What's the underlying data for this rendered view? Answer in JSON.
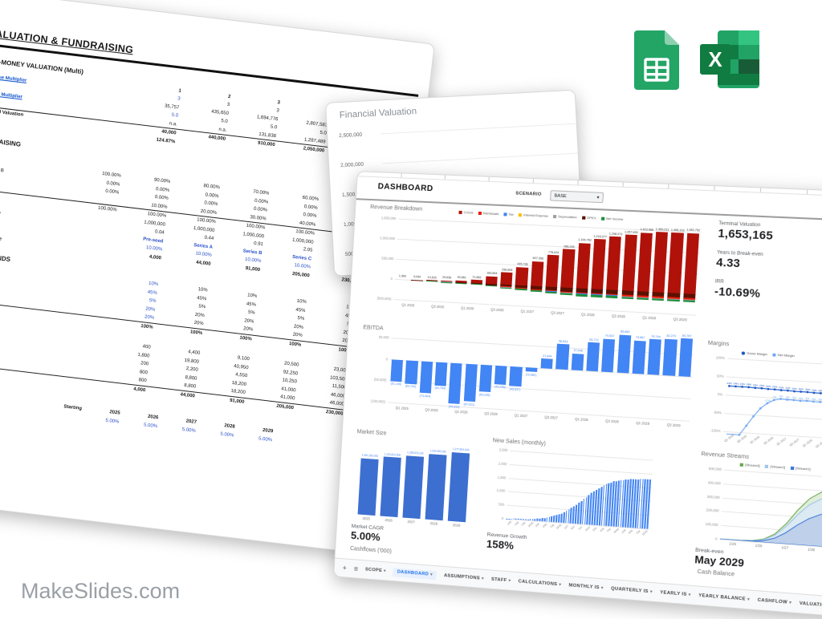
{
  "branding": {
    "watermark": "MakeSlides.com"
  },
  "left_sheet": {
    "gutter": {
      "start": 2,
      "end": 32
    },
    "title": "VALUATION & FUNDRAISING",
    "premoney": {
      "title": "PRE-MONEY VALUATION (Multi)",
      "cols": [
        "1",
        "2",
        "3",
        "4",
        "5"
      ],
      "rows": [
        {
          "label": "Revenue Multiplier",
          "mult": [
            "3",
            "3",
            "3",
            "3",
            "3"
          ],
          "vals": [
            "35,757",
            "435,650",
            "1,694,776",
            "2,807,583",
            "3,004,552"
          ]
        },
        {
          "label": "EBITDA Multiplier",
          "mult": [
            "5.0",
            "5.0",
            "5.0",
            "5.0",
            "5.0"
          ],
          "vals": [
            "n.a.",
            "n.a.",
            "131,838",
            "1,287,489",
            "1,604,488"
          ]
        }
      ],
      "financial_valuation": {
        "label": "Financial Valuation",
        "vals": [
          "40,000",
          "440,000",
          "910,000",
          "2,050,000",
          "2,300,000"
        ]
      },
      "rri": {
        "label": "RRI",
        "value": "124.87%"
      }
    },
    "fundraising": {
      "title": "FUNDRAISING",
      "cap_table_label": "Cap Table",
      "cap_rows": [
        {
          "label": "Founder",
          "vals": [
            "100.00%",
            "90.00%",
            "80.00%",
            "70.00%",
            "60.00%",
            "50.00%"
          ]
        },
        {
          "label": "Shareholder B",
          "vals": [
            "0.00%",
            "0.00%",
            "0.00%",
            "0.00%",
            "0.00%",
            "0.00%"
          ]
        },
        {
          "label": "Employees",
          "vals": [
            "0.00%",
            "0.00%",
            "0.00%",
            "0.00%",
            "0.00%",
            "0.00%"
          ]
        },
        {
          "label": "Shares sold",
          "vals": [
            "",
            "10.00%",
            "20.00%",
            "30.00%",
            "40.00%",
            "50.00%"
          ]
        },
        {
          "label": "Total",
          "vals": [
            "100.00%",
            "100.00%",
            "100.00%",
            "100.00%",
            "100.00%",
            "100.00%"
          ],
          "bt": true
        }
      ],
      "share_rows": [
        {
          "label": "Shares",
          "vals": [
            "",
            "1,000,000",
            "1,000,000",
            "1,000,000",
            "1,000,000",
            "1,000,000"
          ]
        },
        {
          "label": "Price per share",
          "vals": [
            "",
            "0.04",
            "0.44",
            "0.91",
            "2.05",
            "2.3"
          ]
        }
      ],
      "round_rows": [
        {
          "label": "Seed round",
          "vals": [
            "",
            "Pre-seed",
            "Series A",
            "Series B",
            "Series C",
            "IPO"
          ],
          "blue": true,
          "bold": true
        },
        {
          "label": "Shares to sell",
          "vals": [
            "",
            "10.00%",
            "10.00%",
            "10.00%",
            "10.00%",
            "10.00%"
          ],
          "blue": true
        },
        {
          "label": "Amount to raise",
          "vals": [
            "",
            "4,000",
            "44,000",
            "91,000",
            "205,000",
            "230,000"
          ],
          "bold": true
        }
      ]
    },
    "use_of_funds": {
      "title": "USE OF FUNDS",
      "pct_rows": [
        {
          "label": "Cashflow",
          "vals": [
            "10%",
            "10%",
            "10%",
            "10%",
            "10%"
          ],
          "blue1": true
        },
        {
          "label": "Marketing",
          "vals": [
            "45%",
            "45%",
            "45%",
            "45%",
            "45%"
          ],
          "blue1": true
        },
        {
          "label": "Legal",
          "vals": [
            "5%",
            "5%",
            "5%",
            "5%",
            "5%"
          ],
          "blue1": true
        },
        {
          "label": "Employees",
          "vals": [
            "20%",
            "20%",
            "20%",
            "20%",
            "20%"
          ],
          "blue1": true
        },
        {
          "label": "Supplier Credit",
          "vals": [
            "20%",
            "20%",
            "20%",
            "20%",
            "20%"
          ],
          "blue1": true,
          "ul": true
        },
        {
          "label": "Total",
          "vals": [
            "100%",
            "100%",
            "100%",
            "100%",
            "100%"
          ],
          "bold": true,
          "bt": true
        }
      ],
      "injections_title": "Capital Injections",
      "inj_rows": [
        {
          "label": "Cashflow",
          "vals": [
            "400",
            "4,400",
            "9,100",
            "20,500",
            "23,000"
          ]
        },
        {
          "label": "Marketing",
          "vals": [
            "1,800",
            "19,800",
            "40,950",
            "92,250",
            "103,500"
          ]
        },
        {
          "label": "Legal",
          "vals": [
            "200",
            "2,200",
            "4,550",
            "10,250",
            "11,500"
          ]
        },
        {
          "label": "Employees",
          "vals": [
            "800",
            "8,800",
            "18,200",
            "41,000",
            "46,000"
          ]
        },
        {
          "label": "Supplier Credit",
          "vals": [
            "800",
            "8,800",
            "18,200",
            "41,000",
            "46,000"
          ],
          "ul": true
        },
        {
          "label": "Total",
          "vals": [
            "4,000",
            "44,000",
            "91,000",
            "205,000",
            "230,000"
          ],
          "bold": true,
          "bt": true
        }
      ]
    },
    "wacc": {
      "title": "WACC",
      "starting_label": "Starting",
      "years": [
        "2025",
        "2026",
        "2027",
        "2028",
        "2029"
      ],
      "rate_row": {
        "label": "Risk-free Rate",
        "vals": [
          "5.00%",
          "5.00%",
          "5.00%",
          "5.00%",
          "5.00%"
        ]
      }
    }
  },
  "mid_sheet": {
    "title": "Financial Valuation",
    "y_labels": [
      "2,500,000",
      "2,000,000",
      "1,500,000",
      "1,000,000",
      "500,000"
    ]
  },
  "dashboard": {
    "title": "DASHBOARD",
    "scenario_label": "SCENARIO",
    "scenario_value": "BASE",
    "dropdown_caret": "▾",
    "stats": [
      {
        "label": "Terminal Valuation",
        "value": "1,653,165"
      },
      {
        "label": "Years to Break-even",
        "value": "4.33"
      },
      {
        "label": "IRR",
        "value": "-10.69%"
      }
    ],
    "kpis": {
      "market_cagr": {
        "label": "Market CAGR",
        "value": "5.00%"
      },
      "revenue_growth": {
        "label": "Revenue Growth",
        "value": "158%"
      },
      "break_even": {
        "label": "Break-even",
        "value": "May 2029"
      }
    },
    "extra_titles": {
      "cashflows": "Cashflows ('000)",
      "cash_balance": "Cash Balance"
    },
    "charts": {
      "revenue_breakdown": {
        "type": "bar-stacked",
        "title": "Revenue Breakdown",
        "legend": [
          {
            "name": "COGS",
            "color": "#b0120a"
          },
          {
            "name": "Dismissals",
            "color": "#ea1c0c"
          },
          {
            "name": "Tax",
            "color": "#4285f4"
          },
          {
            "name": "Interest Expense",
            "color": "#fbbc04"
          },
          {
            "name": "Depreciation",
            "color": "#9aa0a6"
          },
          {
            "name": "OPEX",
            "color": "#5c1000"
          },
          {
            "name": "Net Income",
            "color": "#1e8e3e"
          }
        ],
        "y_ticks": [
          "1,500,000",
          "1,000,000",
          "500,000",
          "0",
          "(500,000)"
        ],
        "x_ticks": [
          "Q1 2025",
          "Q3 2025",
          "Q1 2026",
          "Q3 2026",
          "Q1 2027",
          "Q3 2027",
          "Q1 2028",
          "Q3 2028",
          "Q1 2029",
          "Q3 2029"
        ],
        "totals": [
          "1,369",
          "5,949",
          "13,525",
          "29,636",
          "40,561",
          "71,583",
          "189,894",
          "296,605",
          "445,736",
          "607,356",
          "778,029",
          "936,249",
          "1,105,752",
          "1,216,077",
          "1,298,373",
          "1,357,630",
          "1,423,966",
          "1,450,011",
          "1,456,102",
          "1,462,752"
        ],
        "costs": [
          1800,
          3500,
          7000,
          14000,
          22000,
          38000,
          65000,
          95000,
          120000,
          148000,
          168000,
          182000,
          192000,
          198000,
          202000,
          205000,
          207000,
          208000,
          209000,
          210000
        ]
      },
      "ebitda": {
        "type": "bar",
        "title": "EBITDA",
        "color": "#4285f4",
        "y_ticks": [
          "50,000",
          "0",
          "(50,000)",
          "(100,000)"
        ],
        "x_ticks": [
          "Q1 2025",
          "Q3 2025",
          "Q1 2026",
          "Q3 2026",
          "Q1 2027",
          "Q3 2027",
          "Q1 2028",
          "Q3 2028",
          "Q1 2029",
          "Q3 2029"
        ],
        "values": [
          "(51,145)",
          "(54,704)",
          "(74,494)",
          "(54,754)",
          "(94,533)",
          "(87,021)",
          "(63,295)",
          "(43,295)",
          "(45,647)",
          "(10,582)",
          "21,844",
          "56,833",
          "37,046",
          "64,713",
          "74,922",
          "85,882",
          "74,887",
          "79,744",
          "82,270",
          "84,787"
        ]
      },
      "margins": {
        "type": "line",
        "title": "Margins",
        "legend": [
          {
            "name": "Gross Margin",
            "color": "#1a56c4"
          },
          {
            "name": "Net Margin",
            "color": "#6fa8f5"
          }
        ],
        "y_ticks": [
          "100%",
          "50%",
          "0%",
          "-50%",
          "-100%"
        ],
        "x_ticks": [
          "Q1 2025",
          "Q3 2025",
          "Q1 2026",
          "Q3 2026",
          "Q1 2027",
          "Q3 2027",
          "Q1 2028",
          "Q3 2028",
          "Q1 2029",
          "Q3 2029"
        ],
        "gross": [
          24,
          24,
          24,
          24,
          23,
          23,
          22,
          22,
          21,
          21,
          20,
          20,
          20,
          19,
          19,
          19,
          18,
          18,
          17,
          17
        ],
        "net": [
          -160,
          -132,
          -108,
          -82,
          -55,
          -32,
          -17,
          -7,
          -3,
          -4,
          -4,
          -5,
          -4,
          -5,
          -5,
          -5,
          -4,
          -5,
          -5,
          -5
        ]
      },
      "market_size": {
        "type": "bar",
        "title": "Market Size",
        "color": "#3d6fd1",
        "categories": [
          "2025",
          "2026",
          "2027",
          "2028",
          "2029"
        ],
        "labels": [
          "1,051,250,000",
          "1,103,812,500",
          "1,159,003,125",
          "1,216,953,281",
          "1,277,801,000"
        ]
      },
      "new_sales": {
        "type": "bar",
        "title": "New Sales (monthly)",
        "color": "#4285f4",
        "y_ticks": [
          "2,500",
          "2,000",
          "1,500",
          "1,000",
          "500",
          "0"
        ],
        "x_ticks": [
          "1/25",
          "4/25",
          "7/25",
          "10/25",
          "1/26",
          "4/26",
          "7/26",
          "10/26",
          "1/27",
          "4/27",
          "7/27",
          "10/27",
          "1/28",
          "4/28",
          "7/28",
          "10/28",
          "1/29",
          "4/29",
          "7/29",
          "10/29"
        ],
        "values": [
          9,
          11,
          13,
          15,
          18,
          21,
          25,
          30,
          35,
          41,
          49,
          57,
          67,
          79,
          92,
          108,
          126,
          147,
          170,
          197,
          227,
          261,
          299,
          341,
          388,
          440,
          496,
          557,
          623,
          692,
          765,
          841,
          918,
          996,
          1073,
          1148,
          1221,
          1289,
          1353,
          1412,
          1465,
          1512,
          1554,
          1591,
          1623,
          1650,
          1674,
          1694,
          1711,
          1726,
          1738,
          1748,
          1756,
          1763,
          1769,
          1774,
          1778,
          1781,
          1784,
          1786
        ]
      },
      "revenue_streams": {
        "type": "area",
        "title": "Revenue Streams",
        "legend": [
          {
            "name": "[Stream3]",
            "color": "#6aa84f"
          },
          {
            "name": "[Stream2]",
            "color": "#9fc5e8"
          },
          {
            "name": "[Stream1]",
            "color": "#3c78d8"
          }
        ],
        "y_ticks": [
          "500,000",
          "400,000",
          "300,000",
          "200,000",
          "100,000",
          "0"
        ],
        "x_ticks": [
          "1/25",
          "1/26",
          "1/27",
          "1/28",
          "1/29"
        ],
        "stream1": [
          500,
          800,
          1500,
          4000,
          12000,
          35000,
          80000,
          140000,
          190000,
          225000,
          245000,
          252000,
          255000
        ],
        "stream2_cum": [
          800,
          1300,
          2500,
          6500,
          19000,
          55000,
          125000,
          215000,
          290000,
          335000,
          358000,
          368000,
          372000
        ],
        "stream3_cum": [
          1000,
          1700,
          3200,
          8000,
          23000,
          65000,
          145000,
          250000,
          335000,
          385000,
          408000,
          418000,
          422000
        ]
      }
    },
    "tabs": {
      "plus": "+",
      "menu": "≡",
      "caret": "▾",
      "items": [
        {
          "label": "SCOPE"
        },
        {
          "label": "DASHBOARD",
          "active": true
        },
        {
          "label": "ASSUMPTIONS"
        },
        {
          "label": "STAFF"
        },
        {
          "label": "CALCULATIONS"
        },
        {
          "label": "MONTHLY IS"
        },
        {
          "label": "QUARTERLY IS"
        },
        {
          "label": "YEARLY IS"
        },
        {
          "label": "YEARLY BALANCE"
        },
        {
          "label": "CASHFLOW"
        },
        {
          "label": "VALUATION"
        }
      ]
    }
  }
}
